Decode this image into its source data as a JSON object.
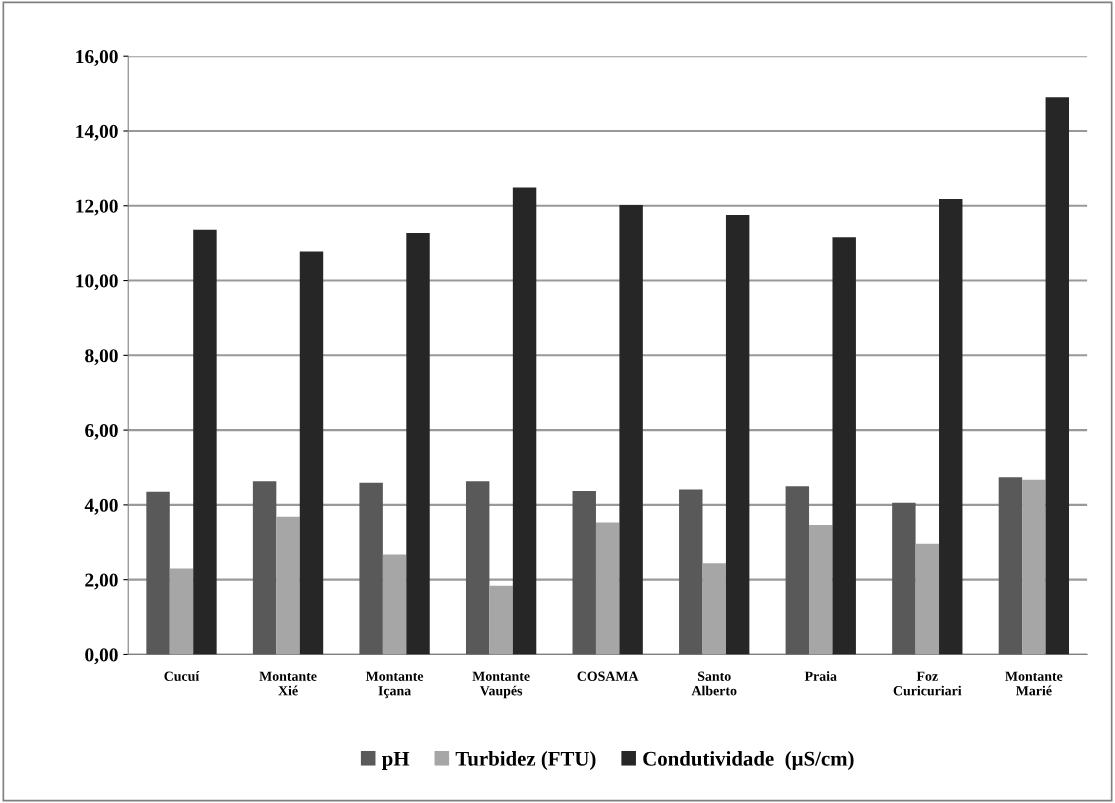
{
  "chart_data": {
    "type": "bar",
    "categories": [
      "Cucuí",
      "Montante\nXié",
      "Montante\nIçana",
      "Montante\nVaupés",
      "COSAMA",
      "Santo\nAlberto",
      "Praia",
      "Foz\nCuricuriari",
      "Montante\nMarié"
    ],
    "series": [
      {
        "name": "pH",
        "color": "#595959",
        "values": [
          4.35,
          4.63,
          4.59,
          4.63,
          4.37,
          4.41,
          4.5,
          4.06,
          4.74
        ]
      },
      {
        "name": "Turbidez (FTU)",
        "color": "#a6a6a6",
        "values": [
          2.3,
          3.68,
          2.67,
          1.84,
          3.53,
          2.44,
          3.46,
          2.96,
          4.67
        ]
      },
      {
        "name": "Condutividade  (µS/cm)",
        "color": "#262626",
        "values": [
          11.36,
          10.78,
          11.27,
          12.49,
          12.02,
          11.75,
          11.16,
          12.18,
          14.9
        ]
      }
    ],
    "ylim": [
      0,
      16
    ],
    "yticks": [
      {
        "value": 0,
        "label": "0,00"
      },
      {
        "value": 2,
        "label": "2,00"
      },
      {
        "value": 4,
        "label": "4,00"
      },
      {
        "value": 6,
        "label": "6,00"
      },
      {
        "value": 8,
        "label": "8,00"
      },
      {
        "value": 10,
        "label": "10,00"
      },
      {
        "value": 12,
        "label": "12,00"
      },
      {
        "value": 14,
        "label": "14,00"
      },
      {
        "value": 16,
        "label": "16,00"
      }
    ],
    "grid": "y",
    "legend": "bottom"
  }
}
